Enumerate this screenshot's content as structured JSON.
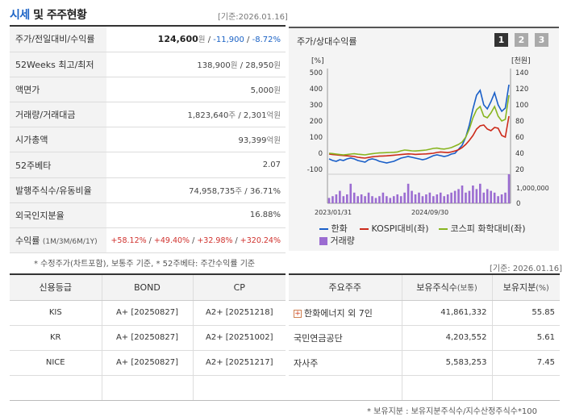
{
  "header": {
    "title_main": "시세",
    "title_rest": " 및 주주현황",
    "date": "[기준:2026.01.16]"
  },
  "price_table": {
    "rows": [
      {
        "label": "주가/전일대비/수익률",
        "price": "124,600",
        "unit": "원",
        "sep1": " / ",
        "change": "-11,900",
        "sep2": " / ",
        "rate": "-8.72%"
      },
      {
        "label": "52Weeks 최고/최저",
        "value": "138,900",
        "unit": "원",
        "sep": " / ",
        "value2": "28,950",
        "unit2": "원"
      },
      {
        "label": "액면가",
        "value": "5,000",
        "unit": "원"
      },
      {
        "label": "거래량/거래대금",
        "value": "1,823,640",
        "unit": "주",
        "sep": " / ",
        "value2": "2,301",
        "unit2": "억원"
      },
      {
        "label": "시가총액",
        "value": "93,399",
        "unit": "억원"
      },
      {
        "label": "52주베타",
        "value": "2.07"
      },
      {
        "label": "발행주식수/유동비율",
        "value": "74,958,735",
        "unit": "주",
        "sep": " / ",
        "value2": "36.71%"
      },
      {
        "label": "외국인지분율",
        "value": "16.88%"
      },
      {
        "label": "수익률",
        "sub": "(1M/3M/6M/1Y)",
        "r1": "+58.12%",
        "r2": "+49.40%",
        "r3": "+32.98%",
        "r4": "+320.24%",
        "sep": " / "
      }
    ],
    "note": "* 수정주가(차트포함), 보통주 기준, * 52주베타: 주간수익률 기준"
  },
  "chart_panel": {
    "title": "주가/상대수익률",
    "pages": [
      "1",
      "2",
      "3"
    ],
    "legend": {
      "s1": "한화",
      "s2": "KOSPI대비(좌)",
      "s3": "코스피 화학대비(좌)",
      "s4": "거래량"
    }
  },
  "chart_data": {
    "type": "line",
    "left_axis_label": "[%]",
    "right_axis_label": "[천원]",
    "left_ticks": [
      "500",
      "400",
      "300",
      "200",
      "100",
      "0",
      "-100"
    ],
    "right_ticks": [
      "140",
      "120",
      "100",
      "80",
      "60",
      "40",
      "20"
    ],
    "volume_tick": "1,000,000",
    "volume_zero": "0",
    "x_labels": [
      "2023/01/31",
      "2024/09/30"
    ],
    "ylim_left": [
      -100,
      500
    ],
    "ylim_right": [
      20,
      140
    ],
    "series": [
      {
        "name": "한화",
        "axis": "right",
        "color": "#1a5fc8",
        "values": [
          33,
          31,
          30,
          32,
          31,
          33,
          34,
          33,
          31,
          30,
          29,
          32,
          33,
          32,
          30,
          29,
          28,
          29,
          30,
          32,
          34,
          35,
          36,
          35,
          34,
          33,
          32,
          33,
          35,
          37,
          38,
          37,
          36,
          37,
          39,
          40,
          45,
          50,
          60,
          75,
          95,
          112,
          118,
          100,
          95,
          104,
          115,
          100,
          92,
          96,
          125
        ]
      },
      {
        "name": "KOSPI대비(좌)",
        "axis": "left",
        "color": "#cc2a1a",
        "values": [
          -5,
          -8,
          -10,
          -12,
          -14,
          -16,
          -18,
          -20,
          -25,
          -28,
          -30,
          -26,
          -22,
          -20,
          -18,
          -17,
          -16,
          -14,
          -12,
          -10,
          -8,
          -6,
          -4,
          -5,
          -7,
          -6,
          -5,
          -4,
          -2,
          0,
          5,
          8,
          6,
          4,
          8,
          14,
          22,
          35,
          55,
          80,
          110,
          150,
          170,
          175,
          150,
          140,
          160,
          155,
          110,
          100,
          230
        ]
      },
      {
        "name": "코스피 화학대비(좌)",
        "axis": "left",
        "color": "#88b520",
        "values": [
          0,
          -2,
          -5,
          -8,
          -10,
          -8,
          -5,
          -3,
          -6,
          -8,
          -10,
          -6,
          -3,
          0,
          2,
          3,
          4,
          5,
          6,
          8,
          15,
          20,
          18,
          15,
          14,
          16,
          18,
          20,
          25,
          30,
          32,
          28,
          26,
          30,
          35,
          45,
          55,
          70,
          100,
          150,
          220,
          270,
          290,
          230,
          220,
          250,
          290,
          230,
          200,
          210,
          360
        ]
      },
      {
        "name": "거래량",
        "axis": "volume",
        "color": "#9b6cd1",
        "values": [
          0.15,
          0.2,
          0.25,
          0.35,
          0.2,
          0.25,
          0.55,
          0.3,
          0.2,
          0.25,
          0.2,
          0.3,
          0.2,
          0.15,
          0.2,
          0.3,
          0.2,
          0.15,
          0.2,
          0.25,
          0.2,
          0.3,
          0.55,
          0.35,
          0.25,
          0.3,
          0.2,
          0.25,
          0.3,
          0.2,
          0.25,
          0.3,
          0.2,
          0.25,
          0.3,
          0.35,
          0.4,
          0.5,
          0.3,
          0.35,
          0.5,
          0.4,
          0.55,
          0.3,
          0.4,
          0.35,
          0.3,
          0.2,
          0.25,
          0.3,
          1.5
        ]
      }
    ]
  },
  "credit": {
    "headers": [
      "신용등급",
      "BOND",
      "CP"
    ],
    "rows": [
      {
        "agency": "KIS",
        "bond": "A+  [20250827]",
        "cp": "A2+  [20251218]"
      },
      {
        "agency": "KR",
        "bond": "A+  [20250827]",
        "cp": "A2+  [20251002]"
      },
      {
        "agency": "NICE",
        "bond": "A+  [20250827]",
        "cp": "A2+  [20251217]"
      }
    ]
  },
  "holders": {
    "date": "[기준: 2026.01.16]",
    "headers": {
      "name": "주요주주",
      "shares": "보유주식수",
      "shares_unit": "(보통)",
      "pct": "보유지분",
      "pct_unit": "(%)"
    },
    "rows": [
      {
        "name": "한화에너지 외 7인",
        "shares": "41,861,332",
        "pct": "55.85",
        "expand": "+"
      },
      {
        "name": "국민연금공단",
        "shares": "4,203,552",
        "pct": "5.61"
      },
      {
        "name": "자사주",
        "shares": "5,583,253",
        "pct": "7.45"
      }
    ],
    "note": "* 보유지분 : 보유지분주식수/지수산정주식수*100"
  }
}
